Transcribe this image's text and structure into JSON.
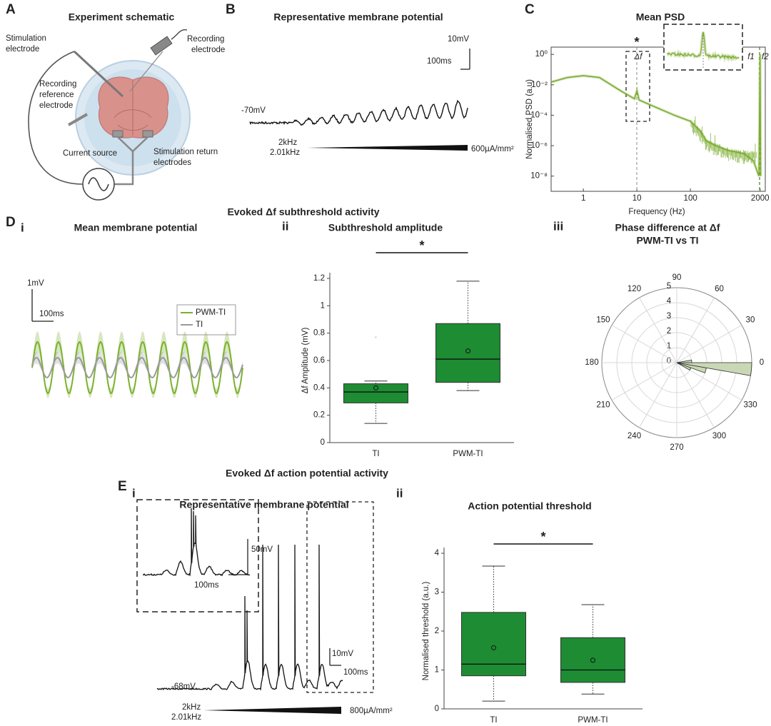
{
  "sections": [
    "Evoked Δf subthreshold activity",
    "Evoked Δf action potential activity"
  ],
  "schematic": {
    "label": "A",
    "title": "Experiment schematic",
    "annotations": [
      [
        "Stimulation",
        "electrode"
      ],
      [
        "Recording",
        "electrode"
      ],
      [
        "Recording",
        "reference",
        "electrode"
      ],
      [
        "Current source"
      ],
      [
        "Stimulation return",
        "electrodes"
      ]
    ]
  },
  "trace_b": {
    "label": "B",
    "title": "Representative membrane potential",
    "scale_v": "10mV",
    "scale_t": "100ms",
    "baseline": "-70mV",
    "carriers": [
      "2kHz",
      "2.01kHz"
    ],
    "amplitude": "600µA/mm²"
  },
  "trace_di": {
    "label": "D",
    "sublabel": "i",
    "title": "Mean membrane potential",
    "scale_v": "1mV",
    "scale_t": "100ms",
    "legend": [
      {
        "name": "PWM-TI",
        "color": "#7cb12d"
      },
      {
        "name": "TI",
        "color": "#9a9a9a"
      }
    ]
  },
  "trace_ei": {
    "label": "E",
    "sublabel": "i",
    "title": "Representative membrane potential",
    "inset_scale_v": "50mV",
    "inset_scale_t": "100ms",
    "scale_v": "10mV",
    "scale_t": "100ms",
    "baseline": "-68mV",
    "carriers": [
      "2kHz",
      "2.01kHz"
    ],
    "amplitude": "800µA/mm²"
  },
  "chart_data": [
    {
      "type": "line",
      "panel_label": "C",
      "title": "Mean PSD",
      "xlabel": "Frequency (Hz)",
      "ylabel": "Normalised PSD (a.u)",
      "xscale": "log",
      "yscale": "log",
      "x": [
        0.25,
        0.5,
        1,
        2,
        5,
        9,
        10,
        11,
        20,
        50,
        100,
        150,
        200,
        300,
        500,
        1000,
        1500,
        1900,
        2000,
        2050
      ],
      "series": [
        {
          "color": "#7aab2e",
          "values": [
            0.015,
            0.03,
            0.04,
            0.03,
            0.004,
            0.0012,
            0.004,
            0.001,
            0.0004,
            0.0001,
            4e-05,
            1e-05,
            2e-06,
            1e-06,
            5e-07,
            3e-07,
            1e-07,
            1e-08,
            1,
            1e-08
          ]
        }
      ],
      "xlim": [
        0.25,
        2500
      ],
      "ylim": [
        1e-09,
        3
      ],
      "xticks": [
        1,
        10,
        100,
        2000
      ],
      "yticks": [
        {
          "value": 1,
          "label": "10⁰"
        },
        {
          "value": 0.01,
          "label": "10⁻²"
        },
        {
          "value": 0.0001,
          "label": "10⁻⁴"
        },
        {
          "value": 1e-06,
          "label": "10⁻⁶"
        },
        {
          "value": 1e-08,
          "label": "10⁻⁸"
        }
      ],
      "annotations": [
        "*",
        "Δf",
        "f1",
        "f2"
      ]
    },
    {
      "type": "box",
      "panel_label": "ii",
      "title": "Subthreshold amplitude",
      "ylabel": "Δf Amplitude (mV)",
      "categories": [
        "TI",
        "PWM-TI"
      ],
      "color": "#1e8c33",
      "boxes": [
        {
          "whisker_low": 0.14,
          "q1": 0.29,
          "median": 0.37,
          "q3": 0.43,
          "whisker_high": 0.45,
          "mean": 0.4,
          "outliers": [
            0.77
          ]
        },
        {
          "whisker_low": 0.38,
          "q1": 0.44,
          "median": 0.61,
          "q3": 0.87,
          "whisker_high": 1.18,
          "mean": 0.67,
          "outliers": []
        }
      ],
      "ylim": [
        0,
        1.2
      ],
      "yticks": [
        0,
        0.2,
        0.4,
        0.6,
        0.8,
        1,
        1.2
      ],
      "annotation": "*"
    },
    {
      "type": "polar_histogram",
      "panel_label": "iii",
      "title": [
        "Phase difference at Δf",
        "PWM-TI vs TI"
      ],
      "bins": [
        -30,
        -20,
        -10,
        0,
        10
      ],
      "counts": [
        1,
        2,
        5,
        1
      ],
      "color": "#c9d7b5",
      "rlim": [
        0,
        5
      ],
      "rticks": [
        0,
        1,
        2,
        3,
        4,
        5
      ],
      "thetaticks": [
        0,
        30,
        60,
        90,
        120,
        150,
        180,
        210,
        240,
        270,
        300,
        330
      ]
    },
    {
      "type": "box",
      "panel_label": "ii",
      "title": "Action potential threshold",
      "ylabel": "Normalised threshold (a.u.)",
      "categories": [
        "TI",
        "PWM-TI"
      ],
      "color": "#1e8c33",
      "boxes": [
        {
          "whisker_low": 0.2,
          "q1": 0.85,
          "median": 1.15,
          "q3": 2.48,
          "whisker_high": 3.67,
          "mean": 1.57,
          "outliers": []
        },
        {
          "whisker_low": 0.38,
          "q1": 0.68,
          "median": 1.0,
          "q3": 1.83,
          "whisker_high": 2.68,
          "mean": 1.25,
          "outliers": []
        }
      ],
      "ylim": [
        0,
        4
      ],
      "yticks": [
        0,
        1,
        2,
        3,
        4
      ],
      "annotation": "*"
    }
  ]
}
